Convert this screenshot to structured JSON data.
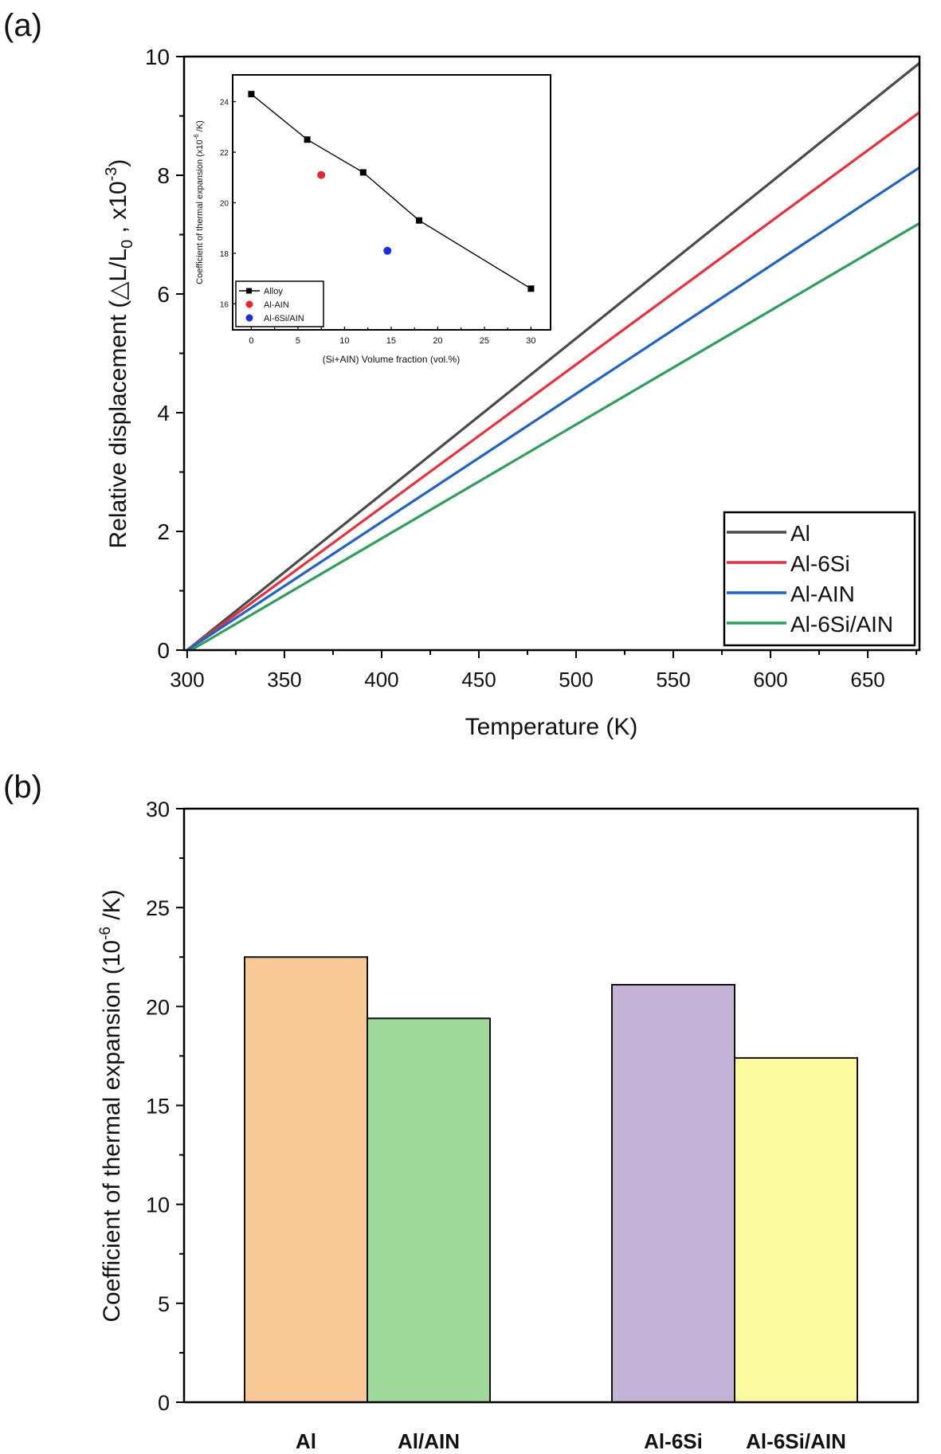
{
  "chart_data": [
    {
      "panel_label": "(a)",
      "type": "line",
      "xlabel": "Temperature (K)",
      "ylabel": {
        "main": "Relative displacement (",
        "delta": "△L/L",
        "sub": "0",
        "mid": " , x10",
        "sup": "-3",
        "end": ")"
      },
      "xlim": [
        298.4,
        676.6
      ],
      "ylim": [
        0,
        10
      ],
      "xticks": [
        300,
        350,
        400,
        450,
        500,
        550,
        600,
        650
      ],
      "yticks": [
        0,
        2,
        4,
        6,
        8,
        10
      ],
      "legend_position": "bottom-right",
      "series": [
        {
          "name": "Al",
          "color": "#4a4a4a",
          "x": [
            300,
            676.6
          ],
          "y": [
            0,
            9.89
          ]
        },
        {
          "name": "Al-6Si",
          "color": "#e8303a",
          "x": [
            300,
            676.6
          ],
          "y": [
            0,
            9.06
          ]
        },
        {
          "name": "Al-AlN",
          "color": "#1f63c6",
          "x": [
            300,
            676.6
          ],
          "y": [
            0,
            8.13
          ]
        },
        {
          "name": "Al-6Si/AlN",
          "color": "#2e9e5b",
          "x": [
            302,
            676.6
          ],
          "y": [
            0,
            7.19
          ]
        }
      ],
      "legend_labels": [
        "Al",
        "Al-6Si",
        "Al-AIN",
        "Al-6Si/AIN"
      ],
      "inset": {
        "type": "scatter",
        "xlabel": "(Si+AlN) Volume fraction (vol.%)",
        "xlabel_display": "(Si+AIN) Volume fraction (vol.%)",
        "ylabel_display": "Coefficient of thermal expansion (x10",
        "ylabel_sup": "-6",
        "ylabel_end": " /K)",
        "xlim": [
          -2,
          32.1
        ],
        "ylim": [
          14.97,
          25.06
        ],
        "xticks": [
          0,
          5,
          10,
          15,
          20,
          25,
          30
        ],
        "yticks": [
          16,
          18,
          20,
          22,
          24
        ],
        "legend_position": "bottom-left",
        "series": [
          {
            "name": "Alloy",
            "color": "#000000",
            "marker": "square",
            "line": true,
            "x": [
              0,
              6,
              12,
              18,
              30
            ],
            "y": [
              24.3,
              22.5,
              21.2,
              19.3,
              16.6
            ]
          },
          {
            "name": "Al-AlN",
            "display_name": "Al-AIN",
            "color": "#e8242b",
            "marker": "circle",
            "line": false,
            "x": [
              7.5
            ],
            "y": [
              21.1
            ]
          },
          {
            "name": "Al-6Si/AlN",
            "display_name": "Al-6Si/AIN",
            "color": "#1a2fe0",
            "marker": "circle",
            "line": false,
            "x": [
              14.6
            ],
            "y": [
              18.1
            ]
          }
        ]
      }
    },
    {
      "panel_label": "(b)",
      "type": "bar",
      "categories": [
        "Al",
        "Al/AIN",
        "Al-6Si",
        "Al-6Si/AIN"
      ],
      "values": [
        22.5,
        19.4,
        21.1,
        17.4
      ],
      "colors": [
        "#f9c897",
        "#a0d89c",
        "#c3b3d7",
        "#fdfb9f"
      ],
      "ylabel": {
        "main": "Coefficient of thermal expansion (10",
        "sup": "-6",
        "end": " /K)"
      },
      "xlabel": "",
      "ylim": [
        0,
        30
      ],
      "yticks": [
        0,
        5,
        10,
        15,
        20,
        25,
        30
      ]
    }
  ]
}
